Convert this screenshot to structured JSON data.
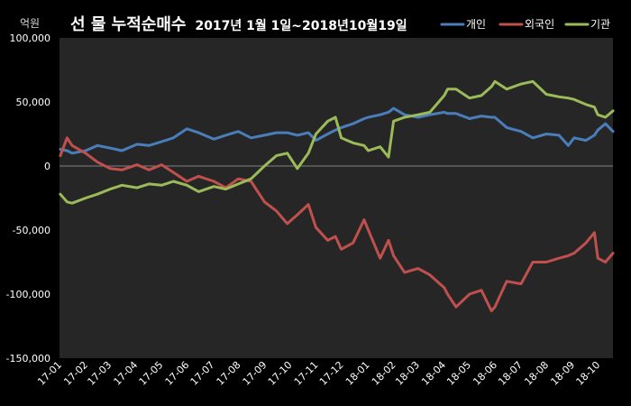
{
  "chart_data": {
    "type": "line",
    "title": "선 물 누적순매수",
    "subtitle": "2017년 1월 1일~2018년10월19일",
    "y_unit": "억원",
    "xlim": [
      "2017-01-01",
      "2018-10-19"
    ],
    "ylim": [
      -150000,
      100000
    ],
    "y_ticks": [
      100000,
      50000,
      0,
      -50000,
      -100000,
      -150000
    ],
    "y_tick_labels": [
      "100,000",
      "50,000",
      "0",
      "-50,000",
      "-100,000",
      "-150,000"
    ],
    "x_tick_labels": [
      "17-01",
      "17-02",
      "17-03",
      "17-04",
      "17-05",
      "17-06",
      "17-07",
      "17-08",
      "17-09",
      "17-10",
      "17-11",
      "17-12",
      "18-01",
      "18-02",
      "18-03",
      "18-04",
      "18-05",
      "18-06",
      "18-07",
      "18-08",
      "18-09",
      "18-10"
    ],
    "grid": false,
    "legend_position": "top-right",
    "colors": {
      "background": "#000000",
      "plot_background": "#262626",
      "axis_line": "#808080"
    },
    "x": [
      "2017-01-02",
      "2017-01-10",
      "2017-01-16",
      "2017-02-01",
      "2017-02-15",
      "2017-03-02",
      "2017-03-16",
      "2017-04-03",
      "2017-04-17",
      "2017-05-02",
      "2017-05-16",
      "2017-06-01",
      "2017-06-15",
      "2017-07-03",
      "2017-07-17",
      "2017-08-01",
      "2017-08-16",
      "2017-09-01",
      "2017-09-15",
      "2017-09-28",
      "2017-10-10",
      "2017-10-23",
      "2017-11-01",
      "2017-11-15",
      "2017-11-24",
      "2017-12-01",
      "2017-12-15",
      "2017-12-28",
      "2018-01-02",
      "2018-01-16",
      "2018-01-26",
      "2018-02-01",
      "2018-02-14",
      "2018-03-02",
      "2018-03-16",
      "2018-04-02",
      "2018-04-06",
      "2018-04-16",
      "2018-05-02",
      "2018-05-16",
      "2018-05-28",
      "2018-06-01",
      "2018-06-15",
      "2018-07-02",
      "2018-07-16",
      "2018-08-01",
      "2018-08-16",
      "2018-08-27",
      "2018-09-03",
      "2018-09-17",
      "2018-09-27",
      "2018-10-01",
      "2018-10-10",
      "2018-10-19"
    ],
    "series": [
      {
        "name": "개인",
        "color": "#4a7ebb",
        "values": [
          13000,
          12000,
          10000,
          12000,
          16000,
          14000,
          12000,
          17000,
          16000,
          19000,
          22000,
          29000,
          26000,
          21000,
          24000,
          27000,
          22000,
          24000,
          26000,
          26000,
          24000,
          26000,
          20000,
          25000,
          28000,
          30000,
          33000,
          37000,
          38000,
          40000,
          42000,
          45000,
          40000,
          38000,
          40000,
          42000,
          41000,
          41000,
          37000,
          39000,
          38000,
          38000,
          30000,
          27000,
          22000,
          25000,
          24000,
          16000,
          22000,
          20000,
          24000,
          28000,
          33000,
          27000
        ]
      },
      {
        "name": "외국인",
        "color": "#c0504d",
        "values": [
          8000,
          22000,
          16000,
          10000,
          3000,
          -2000,
          -3000,
          1000,
          -3000,
          1000,
          -5000,
          -12000,
          -8000,
          -12000,
          -17000,
          -10000,
          -12000,
          -28000,
          -35000,
          -45000,
          -38000,
          -30000,
          -48000,
          -58000,
          -55000,
          -65000,
          -60000,
          -42000,
          -50000,
          -72000,
          -58000,
          -70000,
          -83000,
          -80000,
          -85000,
          -95000,
          -100000,
          -110000,
          -100000,
          -97000,
          -113000,
          -110000,
          -90000,
          -92000,
          -75000,
          -75000,
          -72000,
          -70000,
          -68000,
          -60000,
          -52000,
          -72000,
          -75000,
          -68000
        ]
      },
      {
        "name": "기관",
        "color": "#9bbb59",
        "values": [
          -22000,
          -28000,
          -29000,
          -25000,
          -22000,
          -18000,
          -15000,
          -17000,
          -14000,
          -15000,
          -12000,
          -15000,
          -20000,
          -16000,
          -18000,
          -14000,
          -10000,
          0,
          8000,
          10000,
          -2000,
          10000,
          25000,
          35000,
          38000,
          22000,
          18000,
          16000,
          12000,
          15000,
          7000,
          35000,
          38000,
          40000,
          42000,
          55000,
          60000,
          60000,
          53000,
          55000,
          62000,
          66000,
          60000,
          64000,
          66000,
          56000,
          54000,
          53000,
          52000,
          48000,
          46000,
          40000,
          38000,
          43000
        ]
      }
    ]
  }
}
